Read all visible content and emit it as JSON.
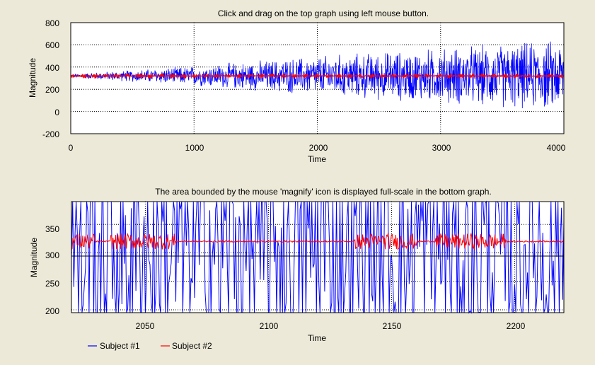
{
  "top_chart": {
    "title": "Click and drag on the top graph using left mouse button.",
    "xlabel": "Time",
    "ylabel": "Magnitude",
    "xlim": [
      0,
      4000
    ],
    "ylim": [
      -200,
      800
    ],
    "xticks": [
      "0",
      "1000",
      "2000",
      "3000",
      "4000"
    ],
    "yticks": [
      "800",
      "600",
      "400",
      "200",
      "0",
      "-200"
    ]
  },
  "bottom_chart": {
    "title": "The area bounded by the mouse 'magnify' icon is displayed full-scale in the bottom graph.",
    "xlabel": "Time",
    "ylabel": "Magnitude",
    "xlim": [
      2020,
      2220
    ],
    "ylim": [
      195,
      390
    ],
    "xticks": [
      "2050",
      "2100",
      "2150",
      "2200"
    ],
    "yticks": [
      "350",
      "300",
      "250",
      "200"
    ]
  },
  "legend": {
    "subject1": "Subject #1",
    "subject2": "Subject #2"
  },
  "colors": {
    "background": "#ece9d8",
    "plot_bg": "#ffffff",
    "subject1": "#0000ff",
    "subject2": "#ff0000"
  },
  "chart_data": [
    {
      "type": "line",
      "title": "Click and drag on the top graph using left mouse button.",
      "xlabel": "Time",
      "ylabel": "Magnitude",
      "xlim": [
        0,
        4000
      ],
      "ylim": [
        -200,
        800
      ],
      "grid": true,
      "series": [
        {
          "name": "Subject #1",
          "color": "#0000ff",
          "x": [
            0,
            500,
            1000,
            1500,
            2000,
            2500,
            3000,
            3500,
            4000
          ],
          "y_center": [
            320,
            320,
            320,
            320,
            320,
            320,
            320,
            320,
            320
          ],
          "y_spread": [
            20,
            60,
            100,
            150,
            200,
            240,
            280,
            320,
            360
          ]
        },
        {
          "name": "Subject #2",
          "color": "#ff0000",
          "x": [
            0,
            4000
          ],
          "y": [
            320,
            320
          ]
        }
      ]
    },
    {
      "type": "line",
      "title": "The area bounded by the mouse 'magnify' icon is displayed full-scale in the bottom graph.",
      "xlabel": "Time",
      "ylabel": "Magnitude",
      "xlim": [
        2020,
        2220
      ],
      "ylim": [
        195,
        390
      ],
      "grid": true,
      "series": [
        {
          "name": "Subject #1",
          "color": "#0000ff"
        },
        {
          "name": "Subject #2",
          "color": "#ff0000"
        }
      ]
    }
  ]
}
